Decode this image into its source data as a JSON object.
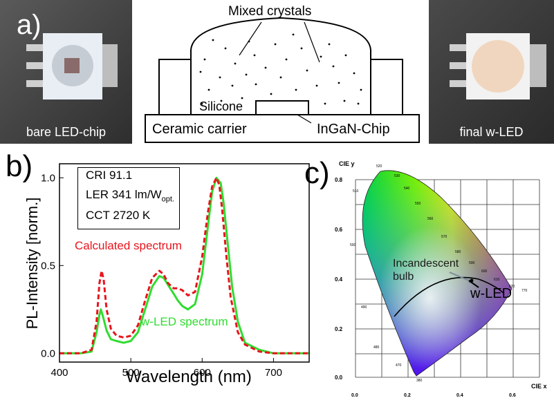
{
  "panel_a": {
    "label": "a)",
    "photo_left_caption": "bare LED-chip",
    "photo_right_caption": "final w-LED",
    "diagram": {
      "mixed_crystals": "Mixed crystals",
      "silicone": "Silicone",
      "ceramic_carrier": "Ceramic carrier",
      "chip": "InGaN-Chip"
    }
  },
  "panel_b": {
    "label": "b)",
    "info": {
      "cri": "CRI 91.1",
      "ler_main": "LER 341 lm/W",
      "ler_sub": "opt.",
      "cct": "CCT 2720 K"
    },
    "calc_label": "Calculated spectrum",
    "led_label": "w-LED spectrum",
    "colors": {
      "calculated": "#e8141c",
      "measured": "#2fdc2f"
    }
  },
  "panel_c": {
    "label": "c)",
    "incandescent": "Incandescent\nbulb",
    "wled": "w-LED",
    "axis_y_title": "CIE y",
    "axis_x_title": "CIE x",
    "y_ticks": [
      "0.8",
      "0.6",
      "0.4",
      "0.2",
      "0.0"
    ],
    "x_ticks": [
      "0.0",
      "0.2",
      "0.4",
      "0.6"
    ],
    "wavelength_marks": [
      "520",
      "530",
      "540",
      "550",
      "560",
      "570",
      "580",
      "590",
      "600",
      "610",
      "620",
      "770",
      "510",
      "500",
      "490",
      "480",
      "470",
      "380"
    ]
  },
  "chart_data": {
    "type": "line",
    "title": "",
    "xlabel": "Wavelength (nm)",
    "ylabel": "PL-Intensity [norm.]",
    "xlim": [
      400,
      750
    ],
    "ylim": [
      -0.05,
      1.08
    ],
    "x_ticks": [
      400,
      500,
      600,
      700
    ],
    "y_ticks": [
      "0.0",
      "0.5",
      "1.0"
    ],
    "series": [
      {
        "name": "Calculated spectrum",
        "style": "dashed",
        "x": [
          400,
          430,
          445,
          452,
          456,
          459,
          462,
          466,
          472,
          480,
          490,
          500,
          510,
          520,
          530,
          540,
          546,
          552,
          560,
          566,
          572,
          580,
          590,
          600,
          608,
          614,
          620,
          624,
          628,
          634,
          640,
          650,
          660,
          680,
          700,
          750
        ],
        "y": [
          0.0,
          0.0,
          0.02,
          0.18,
          0.4,
          0.47,
          0.42,
          0.25,
          0.14,
          0.1,
          0.09,
          0.1,
          0.16,
          0.3,
          0.43,
          0.47,
          0.45,
          0.4,
          0.37,
          0.37,
          0.36,
          0.33,
          0.35,
          0.55,
          0.8,
          0.95,
          1.0,
          0.96,
          0.82,
          0.55,
          0.32,
          0.12,
          0.05,
          0.01,
          0.0,
          0.0
        ]
      },
      {
        "name": "w-LED spectrum",
        "style": "solid",
        "x": [
          400,
          430,
          445,
          452,
          456,
          458,
          461,
          466,
          472,
          480,
          490,
          500,
          510,
          520,
          530,
          540,
          546,
          552,
          560,
          566,
          572,
          580,
          590,
          600,
          608,
          614,
          620,
          626,
          630,
          636,
          642,
          650,
          660,
          680,
          700,
          750
        ],
        "y": [
          0.0,
          0.0,
          0.01,
          0.12,
          0.22,
          0.25,
          0.21,
          0.13,
          0.08,
          0.07,
          0.06,
          0.07,
          0.12,
          0.25,
          0.38,
          0.44,
          0.43,
          0.39,
          0.34,
          0.3,
          0.27,
          0.25,
          0.28,
          0.45,
          0.72,
          0.92,
          1.0,
          0.97,
          0.86,
          0.62,
          0.38,
          0.18,
          0.06,
          0.02,
          0.0,
          0.0
        ]
      }
    ]
  }
}
